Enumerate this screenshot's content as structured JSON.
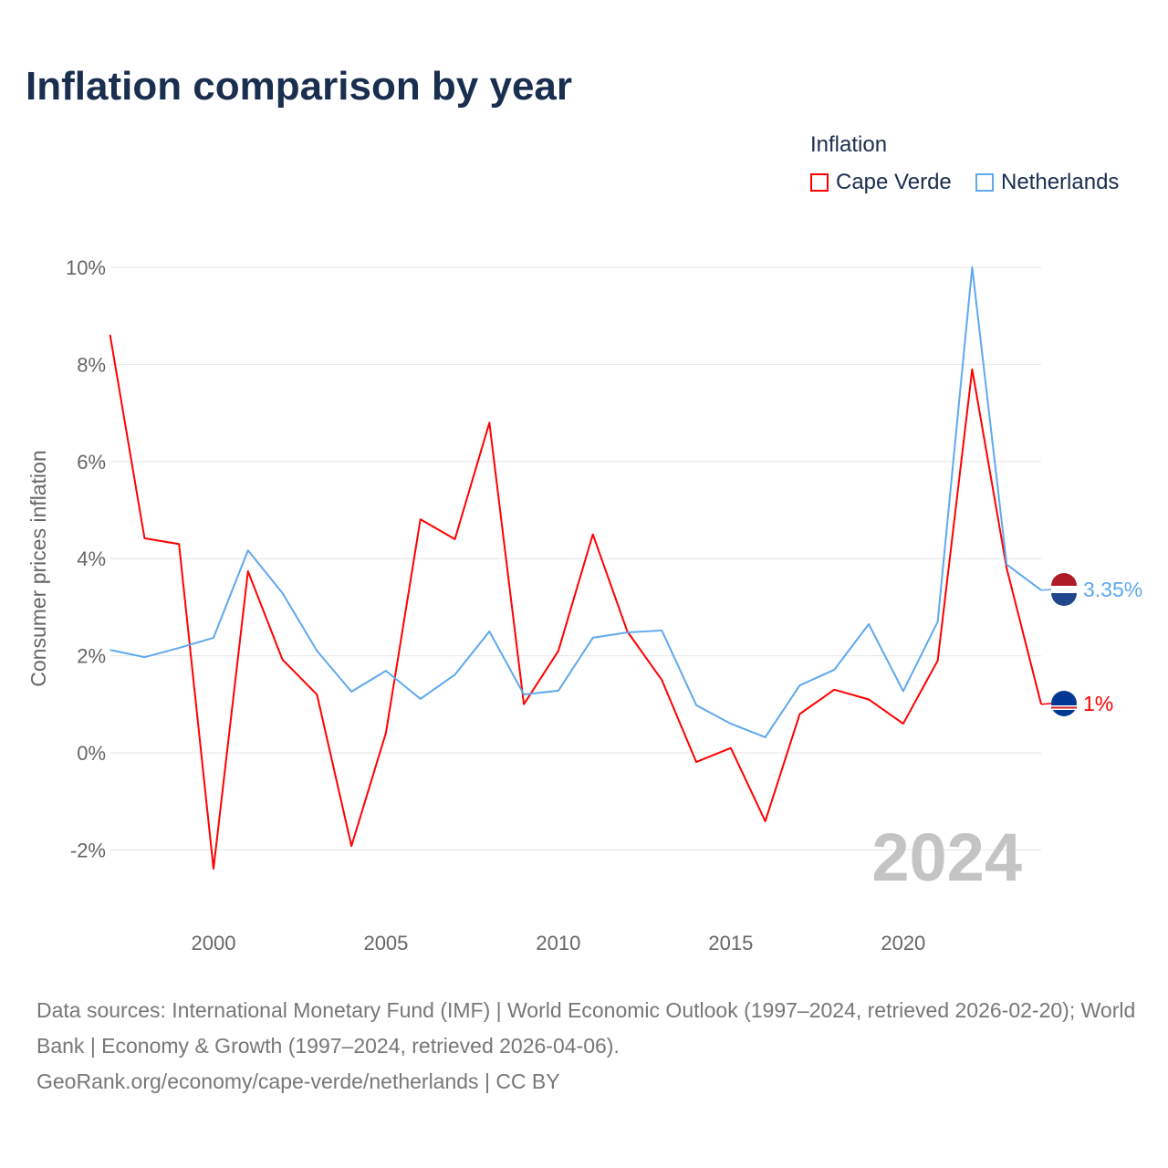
{
  "chart_data": {
    "type": "line",
    "title": "Inflation comparison by year",
    "legend_title": "Inflation",
    "legend_placement": "top-right",
    "xlabel": "",
    "ylabel": "Consumer prices inflation",
    "ylim": [
      -3,
      10.5
    ],
    "xlim": [
      1997,
      2024
    ],
    "y_ticks": [
      -2,
      0,
      2,
      4,
      6,
      8,
      10
    ],
    "y_tick_labels": [
      "-2%",
      "0%",
      "2%",
      "4%",
      "6%",
      "8%",
      "10%"
    ],
    "x_ticks": [
      2000,
      2005,
      2010,
      2015,
      2020
    ],
    "x_tick_labels": [
      "2000",
      "2005",
      "2010",
      "2015",
      "2020"
    ],
    "grid": true,
    "year_watermark": "2024",
    "x": [
      1997,
      1998,
      1999,
      2000,
      2001,
      2002,
      2003,
      2004,
      2005,
      2006,
      2007,
      2008,
      2009,
      2010,
      2011,
      2012,
      2013,
      2014,
      2015,
      2016,
      2017,
      2018,
      2019,
      2020,
      2021,
      2022,
      2023,
      2024
    ],
    "series": [
      {
        "name": "Cape Verde",
        "color": "#ff0000",
        "end_label": "1%",
        "values": [
          8.61,
          4.42,
          4.3,
          -2.39,
          3.74,
          1.92,
          1.2,
          -1.92,
          0.41,
          4.81,
          4.4,
          6.8,
          1.0,
          2.1,
          4.5,
          2.5,
          1.5,
          -0.19,
          0.1,
          -1.41,
          0.8,
          1.3,
          1.1,
          0.6,
          1.9,
          7.9,
          3.8,
          1.0
        ]
      },
      {
        "name": "Netherlands",
        "color": "#5fa8ee",
        "end_label": "3.35%",
        "values": [
          2.12,
          1.97,
          2.16,
          2.37,
          4.17,
          3.29,
          2.1,
          1.26,
          1.69,
          1.11,
          1.61,
          2.5,
          1.2,
          1.28,
          2.37,
          2.48,
          2.52,
          0.98,
          0.6,
          0.32,
          1.39,
          1.71,
          2.65,
          1.27,
          2.7,
          10.0,
          3.88,
          3.35
        ]
      }
    ]
  },
  "source": "Data sources: International Monetary Fund (IMF) | World Economic Outlook (1997–2024, retrieved 2026-02-20); World Bank | Economy & Growth (1997–2024, retrieved 2026-04-06).",
  "attribution": "GeoRank.org/economy/cape-verde/netherlands | CC BY"
}
